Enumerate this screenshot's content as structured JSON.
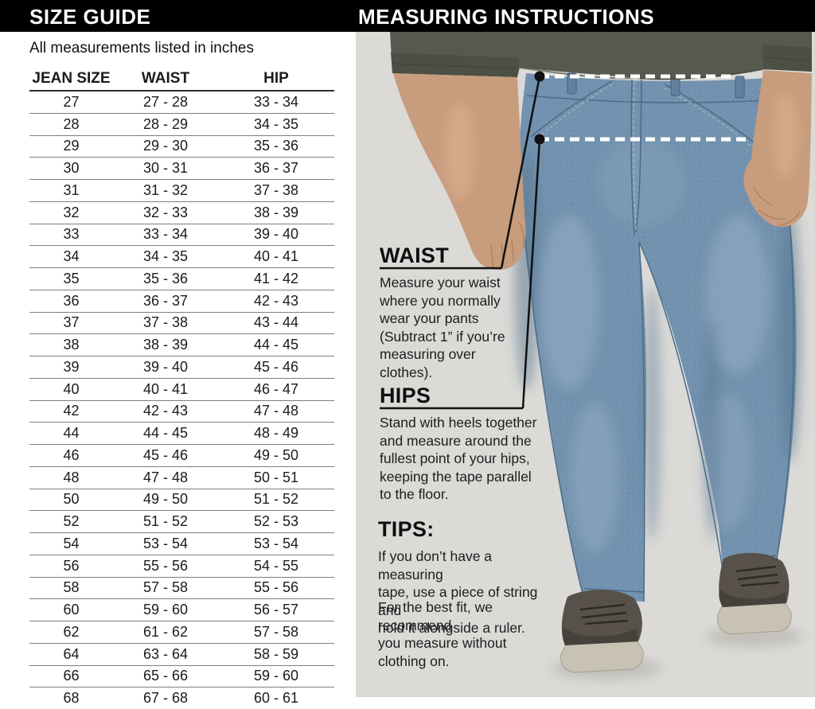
{
  "header": {
    "left_title": "SIZE GUIDE",
    "right_title": "MEASURING INSTRUCTIONS"
  },
  "size_guide": {
    "note": "All measurements listed in inches",
    "columns": [
      "JEAN SIZE",
      "WAIST",
      "HIP"
    ],
    "rows": [
      [
        "27",
        "27 - 28",
        "33 - 34"
      ],
      [
        "28",
        "28 - 29",
        "34 - 35"
      ],
      [
        "29",
        "29 - 30",
        "35 - 36"
      ],
      [
        "30",
        "30 - 31",
        "36 - 37"
      ],
      [
        "31",
        "31 - 32",
        "37 - 38"
      ],
      [
        "32",
        "32 - 33",
        "38 - 39"
      ],
      [
        "33",
        "33 - 34",
        "39 - 40"
      ],
      [
        "34",
        "34 - 35",
        "40 - 41"
      ],
      [
        "35",
        "35 - 36",
        "41 - 42"
      ],
      [
        "36",
        "36 - 37",
        "42 - 43"
      ],
      [
        "37",
        "37 - 38",
        "43 - 44"
      ],
      [
        "38",
        "38 - 39",
        "44 - 45"
      ],
      [
        "39",
        "39 - 40",
        "45 - 46"
      ],
      [
        "40",
        "40 - 41",
        "46 - 47"
      ],
      [
        "42",
        "42 - 43",
        "47 - 48"
      ],
      [
        "44",
        "44 - 45",
        "48 - 49"
      ],
      [
        "46",
        "45 - 46",
        "49 - 50"
      ],
      [
        "48",
        "47 - 48",
        "50 - 51"
      ],
      [
        "50",
        "49 - 50",
        "51 - 52"
      ],
      [
        "52",
        "51 - 52",
        "52 - 53"
      ],
      [
        "54",
        "53 - 54",
        "53 - 54"
      ],
      [
        "56",
        "55 - 56",
        "54 - 55"
      ],
      [
        "58",
        "57 - 58",
        "55 - 56"
      ],
      [
        "60",
        "59 - 60",
        "56 - 57"
      ],
      [
        "62",
        "61 - 62",
        "57 - 58"
      ],
      [
        "64",
        "63 - 64",
        "58 - 59"
      ],
      [
        "66",
        "65 - 66",
        "59 - 60"
      ],
      [
        "68",
        "67 - 68",
        "60 - 61"
      ]
    ]
  },
  "instructions": {
    "waist": {
      "heading": "WAIST",
      "body": "Measure your waist\nwhere you normally\nwear your pants\n(Subtract 1” if you’re\nmeasuring over clothes)."
    },
    "hips": {
      "heading": "HIPS",
      "body": "Stand with heels together\nand measure around the\nfullest point of your hips,\nkeeping the tape parallel\nto the floor."
    },
    "tips": {
      "heading": "TIPS:",
      "body1": "If you don’t have a measuring\ntape, use a piece of string and\nhold it alongside a ruler.",
      "body2": "For the best fit, we recommend\nyou measure without clothing on."
    }
  },
  "colors": {
    "bar_black": "#000000",
    "photo_bg": "#dbdad7",
    "denim": "#7191ae",
    "denim_seam": "#4d6a87",
    "sweater": "#565a4e",
    "sweater_cuff": "#4b4f44",
    "skin": "#c79d7e",
    "shoe_upper": "#575149",
    "shoe_toe": "#46413a",
    "sole": "#c8c2b4",
    "marker_line": "#101010",
    "dash_white": "#ffffff"
  }
}
